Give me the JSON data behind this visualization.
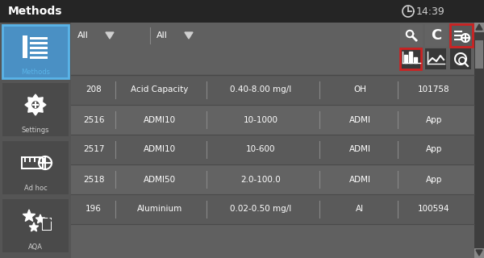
{
  "bg_dark": "#3a3a3a",
  "bg_header": "#252525",
  "bg_main": "#606060",
  "bg_sidebar": "#4a4a4a",
  "bg_left_panel": "#555555",
  "bg_table_row": "#5c5c5c",
  "bg_table_sep": "#4e4e4e",
  "bg_icon_dark": "#383838",
  "bg_icon_selected_blue": "#4a90c4",
  "bg_icon_btn": "#636363",
  "bg_icon_btn2": "#3d3d3d",
  "border_red": "#cc2222",
  "border_blue": "#5ab4e8",
  "text_white": "#ffffff",
  "text_light": "#d0d0d0",
  "text_blue": "#5ab4e8",
  "scrollbar_bg": "#3e3e3e",
  "scrollbar_thumb": "#7a7a7a",
  "scrollbar_arrow": "#888888",
  "title": "Methods",
  "time": "14:39",
  "dropdown1": "All",
  "dropdown2": "All",
  "left_menu": [
    {
      "label": "Methods",
      "selected": true
    },
    {
      "label": "Settings",
      "selected": false
    },
    {
      "label": "Ad hoc",
      "selected": false
    },
    {
      "label": "AQA",
      "selected": false
    }
  ],
  "table_rows": [
    [
      "208",
      "Acid Capacity",
      "0.40-8.00 mg/l",
      "OH",
      "101758"
    ],
    [
      "2516",
      "ADMI10",
      "10-1000",
      "ADMI",
      "App"
    ],
    [
      "2517",
      "ADMI10",
      "10-600",
      "ADMI",
      "App"
    ],
    [
      "2518",
      "ADMI50",
      "2.0-100.0",
      "ADMI",
      "App"
    ],
    [
      "196",
      "Aluminium",
      "0.02-0.50 mg/l",
      "Al",
      "100594"
    ]
  ]
}
